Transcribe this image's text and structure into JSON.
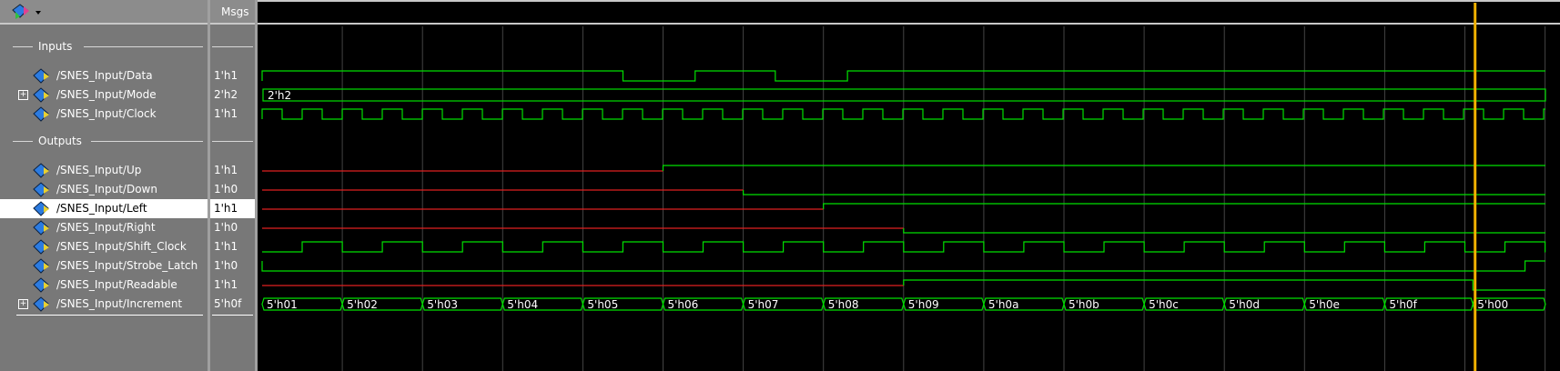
{
  "header": {
    "msgs_label": "Msgs"
  },
  "groups": [
    {
      "label": "Inputs"
    },
    {
      "label": "Outputs"
    }
  ],
  "signals": [
    {
      "name": "/SNES_Input/Data",
      "value": "1'h1",
      "color": "#00e000"
    },
    {
      "name": "/SNES_Input/Mode",
      "value": "2'h2",
      "bus_value": "2'h2",
      "color": "#00e000",
      "expandable": true
    },
    {
      "name": "/SNES_Input/Clock",
      "value": "1'h1",
      "color": "#00e000"
    },
    {
      "name": "/SNES_Input/Up",
      "value": "1'h1",
      "color": "#00e000"
    },
    {
      "name": "/SNES_Input/Down",
      "value": "1'h0",
      "color": "#00e000"
    },
    {
      "name": "/SNES_Input/Left",
      "value": "1'h1",
      "color": "#00e000",
      "selected": true
    },
    {
      "name": "/SNES_Input/Right",
      "value": "1'h0",
      "color": "#00e000"
    },
    {
      "name": "/SNES_Input/Shift_Clock",
      "value": "1'h1",
      "color": "#00e000"
    },
    {
      "name": "/SNES_Input/Strobe_Latch",
      "value": "1'h0",
      "color": "#00e000"
    },
    {
      "name": "/SNES_Input/Readable",
      "value": "1'h1",
      "color": "#00e000"
    },
    {
      "name": "/SNES_Input/Increment",
      "value": "5'h0f",
      "color": "#00e000",
      "expandable": true,
      "bus_values": [
        "5'h01",
        "5'h02",
        "5'h03",
        "5'h04",
        "5'h05",
        "5'h06",
        "5'h07",
        "5'h08",
        "5'h09",
        "5'h0a",
        "5'h0b",
        "5'h0c",
        "5'h0d",
        "5'h0e",
        "5'h0f",
        "5'h00"
      ]
    }
  ],
  "colors": {
    "wave": "#00e000",
    "unknown": "#e02020",
    "cursor": "#f0b000",
    "grid": "#444444"
  }
}
